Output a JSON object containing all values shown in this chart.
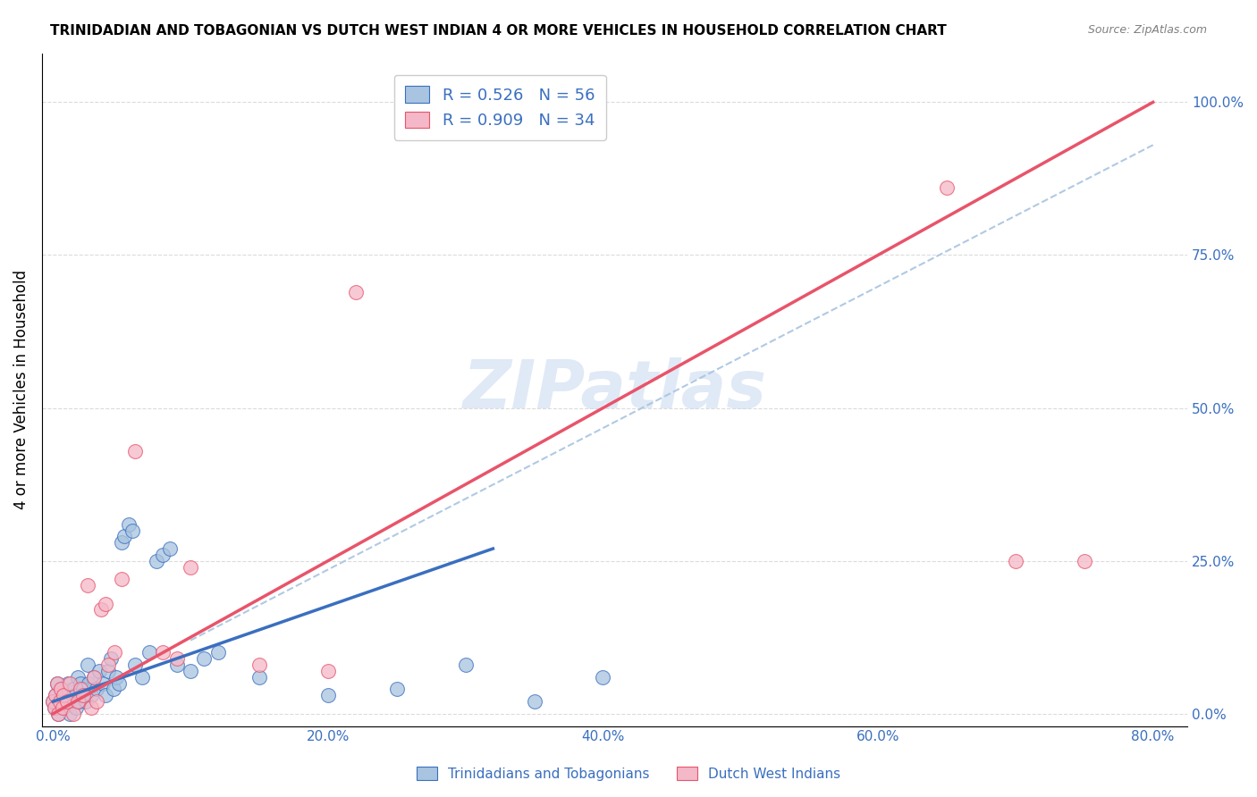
{
  "title": "TRINIDADIAN AND TOBAGONIAN VS DUTCH WEST INDIAN 4 OR MORE VEHICLES IN HOUSEHOLD CORRELATION CHART",
  "source": "Source: ZipAtlas.com",
  "ylabel": "4 or more Vehicles in Household",
  "xtick_labels": [
    "0.0%",
    "20.0%",
    "40.0%",
    "60.0%",
    "80.0%"
  ],
  "xtick_values": [
    0.0,
    0.2,
    0.4,
    0.6,
    0.8
  ],
  "ytick_labels": [
    "0.0%",
    "25.0%",
    "50.0%",
    "75.0%",
    "100.0%"
  ],
  "ytick_values": [
    0.0,
    0.25,
    0.5,
    0.75,
    1.0
  ],
  "blue_R": 0.526,
  "blue_N": 56,
  "pink_R": 0.909,
  "pink_N": 34,
  "blue_color": "#a8c4e0",
  "pink_color": "#f4b8c8",
  "blue_line_color": "#3a6fbf",
  "pink_line_color": "#e8546a",
  "dashed_line_color": "#a8c4e0",
  "legend_text_color": "#3a6fbf",
  "watermark": "ZIPatlas",
  "blue_points_x": [
    0.0,
    0.001,
    0.002,
    0.003,
    0.004,
    0.005,
    0.006,
    0.007,
    0.008,
    0.009,
    0.01,
    0.011,
    0.012,
    0.013,
    0.015,
    0.016,
    0.017,
    0.018,
    0.019,
    0.02,
    0.021,
    0.022,
    0.024,
    0.025,
    0.026,
    0.028,
    0.03,
    0.032,
    0.034,
    0.036,
    0.038,
    0.04,
    0.042,
    0.044,
    0.046,
    0.048,
    0.05,
    0.052,
    0.055,
    0.058,
    0.06,
    0.065,
    0.07,
    0.075,
    0.08,
    0.085,
    0.09,
    0.1,
    0.11,
    0.12,
    0.15,
    0.2,
    0.25,
    0.3,
    0.35,
    0.4
  ],
  "blue_points_y": [
    0.02,
    0.01,
    0.03,
    0.05,
    0.0,
    0.02,
    0.04,
    0.01,
    0.03,
    0.015,
    0.02,
    0.05,
    0.0,
    0.02,
    0.04,
    0.03,
    0.01,
    0.06,
    0.02,
    0.05,
    0.03,
    0.04,
    0.02,
    0.08,
    0.05,
    0.03,
    0.06,
    0.04,
    0.07,
    0.05,
    0.03,
    0.07,
    0.09,
    0.04,
    0.06,
    0.05,
    0.28,
    0.29,
    0.31,
    0.3,
    0.08,
    0.06,
    0.1,
    0.25,
    0.26,
    0.27,
    0.08,
    0.07,
    0.09,
    0.1,
    0.06,
    0.03,
    0.04,
    0.08,
    0.02,
    0.06
  ],
  "pink_points_x": [
    0.0,
    0.001,
    0.002,
    0.003,
    0.004,
    0.005,
    0.006,
    0.007,
    0.008,
    0.01,
    0.012,
    0.015,
    0.018,
    0.02,
    0.022,
    0.025,
    0.028,
    0.03,
    0.032,
    0.035,
    0.038,
    0.04,
    0.045,
    0.05,
    0.06,
    0.08,
    0.09,
    0.1,
    0.15,
    0.2,
    0.22,
    0.65,
    0.7,
    0.75
  ],
  "pink_points_y": [
    0.02,
    0.01,
    0.03,
    0.05,
    0.0,
    0.02,
    0.04,
    0.01,
    0.03,
    0.02,
    0.05,
    0.0,
    0.02,
    0.04,
    0.03,
    0.21,
    0.01,
    0.06,
    0.02,
    0.17,
    0.18,
    0.08,
    0.1,
    0.22,
    0.43,
    0.1,
    0.09,
    0.24,
    0.08,
    0.07,
    0.69,
    0.86,
    0.25,
    0.25
  ],
  "blue_line_x": [
    0.0,
    0.32
  ],
  "blue_line_y": [
    0.02,
    0.27
  ],
  "pink_line_x": [
    0.0,
    0.8
  ],
  "pink_line_y": [
    0.0,
    1.0
  ],
  "dashed_line_x": [
    0.1,
    0.8
  ],
  "dashed_line_y": [
    0.12,
    0.93
  ]
}
